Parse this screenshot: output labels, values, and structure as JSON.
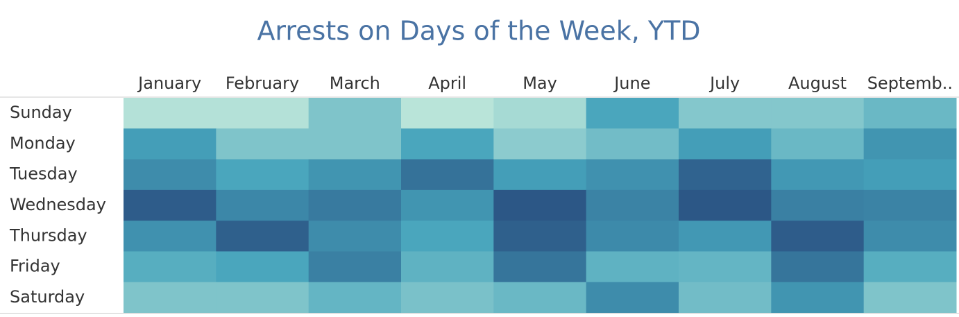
{
  "chart_data": {
    "type": "heatmap",
    "title": "Arrests on Days of the Week, YTD",
    "x": [
      "January",
      "February",
      "March",
      "April",
      "May",
      "June",
      "July",
      "August",
      "Septemb.."
    ],
    "y": [
      "Sunday",
      "Monday",
      "Tuesday",
      "Wednesday",
      "Thursday",
      "Friday",
      "Saturday"
    ],
    "values": [
      [
        10,
        10,
        30,
        8,
        15,
        50,
        28,
        28,
        38
      ],
      [
        55,
        30,
        30,
        50,
        25,
        35,
        55,
        38,
        60
      ],
      [
        65,
        50,
        60,
        80,
        55,
        62,
        88,
        58,
        55
      ],
      [
        92,
        68,
        75,
        60,
        95,
        70,
        95,
        72,
        70
      ],
      [
        62,
        90,
        65,
        50,
        90,
        66,
        58,
        92,
        65
      ],
      [
        45,
        50,
        72,
        42,
        78,
        42,
        40,
        78,
        45
      ],
      [
        30,
        30,
        40,
        32,
        38,
        65,
        35,
        60,
        30
      ]
    ],
    "colors": [
      "#b9e4d9",
      "#46a4bc",
      "#2c5786"
    ]
  }
}
